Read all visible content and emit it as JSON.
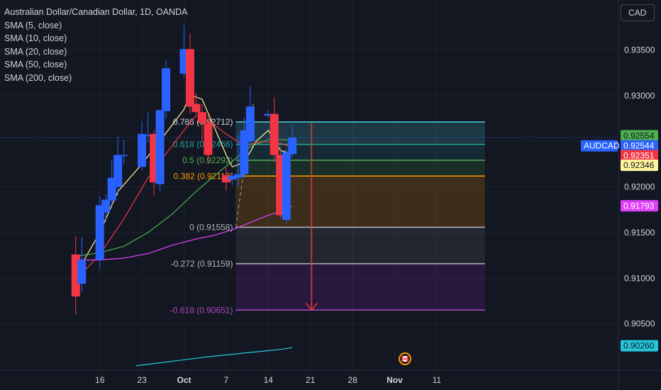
{
  "header": {
    "symbol_title": "Australian Dollar/Canadian Dollar, 1D, OANDA",
    "indicators": [
      "SMA (5, close)",
      "SMA (10, close)",
      "SMA (20, close)",
      "SMA (50, close)",
      "SMA (200, close)"
    ],
    "currency_button": "CAD"
  },
  "colors": {
    "background": "#131722",
    "bull": "#2962ff",
    "bear": "#f23645",
    "sma5": "#fff59d",
    "sma10": "#f23645",
    "sma20": "#4caf50",
    "sma50": "#e040fb",
    "sma200": "#26c6da",
    "fib_0786": "#4dd0e1",
    "fib_0618": "#26a69a",
    "fib_05": "#4caf50",
    "fib_0382": "#ff9800",
    "fib_0": "#b2b5be",
    "fib_m0272": "#b2b5be",
    "fib_m0618": "#ab47bc",
    "arrow": "#e53935"
  },
  "chart_data": {
    "type": "candlestick",
    "yaxis_ticks": [
      "0.93500",
      "0.93000",
      "0.92500",
      "0.92000",
      "0.91500",
      "0.91000",
      "0.90500"
    ],
    "ylim": [
      0.9002,
      0.9378
    ],
    "xaxis_ticks": [
      {
        "label": "16",
        "day": 16
      },
      {
        "label": "23",
        "day": 23
      },
      {
        "label": "Oct",
        "day": 30
      },
      {
        "label": "7",
        "day": 37
      },
      {
        "label": "14",
        "day": 44
      },
      {
        "label": "21",
        "day": 51
      },
      {
        "label": "28",
        "day": 58
      },
      {
        "label": "Nov",
        "day": 65
      },
      {
        "label": "11",
        "day": 72
      }
    ],
    "candles": [
      {
        "day": 12,
        "open": 0.9126,
        "high": 0.9146,
        "low": 0.906,
        "close": 0.908
      },
      {
        "day": 13,
        "open": 0.9094,
        "high": 0.9145,
        "low": 0.9085,
        "close": 0.912
      },
      {
        "day": 16,
        "open": 0.912,
        "high": 0.919,
        "low": 0.911,
        "close": 0.918
      },
      {
        "day": 17,
        "open": 0.9172,
        "high": 0.9192,
        "low": 0.9162,
        "close": 0.9186
      },
      {
        "day": 18,
        "open": 0.9185,
        "high": 0.923,
        "low": 0.918,
        "close": 0.921
      },
      {
        "day": 19,
        "open": 0.92,
        "high": 0.9255,
        "low": 0.919,
        "close": 0.9235
      },
      {
        "day": 20,
        "open": 0.9234,
        "high": 0.9252,
        "low": 0.9225,
        "close": 0.9235
      },
      {
        "day": 23,
        "open": 0.9222,
        "high": 0.9272,
        "low": 0.9218,
        "close": 0.9258
      },
      {
        "day": 24,
        "open": 0.9256,
        "high": 0.9282,
        "low": 0.9249,
        "close": 0.9257
      },
      {
        "day": 25,
        "open": 0.9258,
        "high": 0.9262,
        "low": 0.919,
        "close": 0.9205
      },
      {
        "day": 26,
        "open": 0.9203,
        "high": 0.9285,
        "low": 0.9195,
        "close": 0.9284
      },
      {
        "day": 27,
        "open": 0.9283,
        "high": 0.934,
        "low": 0.9275,
        "close": 0.933
      },
      {
        "day": 30,
        "open": 0.9324,
        "high": 0.9377,
        "low": 0.932,
        "close": 0.9351
      },
      {
        "day": 31,
        "open": 0.9351,
        "high": 0.9368,
        "low": 0.928,
        "close": 0.9288
      },
      {
        "day": 32,
        "open": 0.9291,
        "high": 0.9303,
        "low": 0.9279,
        "close": 0.9282
      },
      {
        "day": 33,
        "open": 0.9282,
        "high": 0.9291,
        "low": 0.925,
        "close": 0.927
      },
      {
        "day": 34,
        "open": 0.927,
        "high": 0.928,
        "low": 0.9225,
        "close": 0.9235
      },
      {
        "day": 37,
        "open": 0.9213,
        "high": 0.9221,
        "low": 0.9196,
        "close": 0.9205
      },
      {
        "day": 38,
        "open": 0.9208,
        "high": 0.9216,
        "low": 0.9202,
        "close": 0.9212
      },
      {
        "day": 39,
        "open": 0.921,
        "high": 0.9257,
        "low": 0.9201,
        "close": 0.9214
      },
      {
        "day": 40,
        "open": 0.9214,
        "high": 0.9276,
        "low": 0.921,
        "close": 0.9262
      },
      {
        "day": 41,
        "open": 0.925,
        "high": 0.931,
        "low": 0.9245,
        "close": 0.9288
      },
      {
        "day": 44,
        "open": 0.9278,
        "high": 0.9284,
        "low": 0.9276,
        "close": 0.928
      },
      {
        "day": 45,
        "open": 0.928,
        "high": 0.9298,
        "low": 0.9227,
        "close": 0.9235
      },
      {
        "day": 46,
        "open": 0.9235,
        "high": 0.9244,
        "low": 0.9166,
        "close": 0.9169
      },
      {
        "day": 47,
        "open": 0.9164,
        "high": 0.9242,
        "low": 0.916,
        "close": 0.9238
      },
      {
        "day": 48,
        "open": 0.9236,
        "high": 0.9268,
        "low": 0.9232,
        "close": 0.9254
      }
    ],
    "sma_lines": [
      {
        "name": "SMA (5, close)",
        "color_key": "sma5",
        "points": [
          [
            12,
            0.9104
          ],
          [
            16,
            0.915
          ],
          [
            19,
            0.9195
          ],
          [
            23,
            0.9225
          ],
          [
            27,
            0.9259
          ],
          [
            30,
            0.9285
          ],
          [
            31,
            0.9301
          ],
          [
            33,
            0.9296
          ],
          [
            35,
            0.9266
          ],
          [
            37,
            0.9235
          ],
          [
            38,
            0.9222
          ],
          [
            40,
            0.9227
          ],
          [
            42,
            0.925
          ],
          [
            44,
            0.9262
          ],
          [
            46,
            0.924
          ],
          [
            48,
            0.9236
          ]
        ]
      },
      {
        "name": "SMA (10, close)",
        "color_key": "sma10",
        "points": [
          [
            12,
            0.9098
          ],
          [
            16,
            0.9126
          ],
          [
            20,
            0.9165
          ],
          [
            24,
            0.921
          ],
          [
            28,
            0.9245
          ],
          [
            30,
            0.9262
          ],
          [
            32,
            0.9278
          ],
          [
            34,
            0.9273
          ],
          [
            37,
            0.9258
          ],
          [
            40,
            0.9245
          ],
          [
            43,
            0.925
          ],
          [
            46,
            0.9248
          ],
          [
            48,
            0.9243
          ]
        ]
      },
      {
        "name": "SMA (20, close)",
        "color_key": "sma20",
        "points": [
          [
            12,
            0.9124
          ],
          [
            16,
            0.9128
          ],
          [
            20,
            0.9135
          ],
          [
            24,
            0.915
          ],
          [
            28,
            0.917
          ],
          [
            32,
            0.9195
          ],
          [
            35,
            0.9212
          ],
          [
            38,
            0.9228
          ],
          [
            41,
            0.9244
          ],
          [
            44,
            0.9252
          ],
          [
            46,
            0.9252
          ],
          [
            48,
            0.9251
          ]
        ]
      },
      {
        "name": "SMA (50, close)",
        "color_key": "sma50",
        "points": [
          [
            12,
            0.912
          ],
          [
            16,
            0.912
          ],
          [
            20,
            0.9122
          ],
          [
            24,
            0.9127
          ],
          [
            28,
            0.9136
          ],
          [
            32,
            0.9143
          ],
          [
            35,
            0.9147
          ],
          [
            38,
            0.9153
          ],
          [
            41,
            0.9161
          ],
          [
            44,
            0.9169
          ],
          [
            46,
            0.9173
          ],
          [
            48,
            0.9179
          ]
        ]
      },
      {
        "name": "SMA (200, close)",
        "color_key": "sma200",
        "points": [
          [
            22,
            0.9004
          ],
          [
            28,
            0.9009
          ],
          [
            34,
            0.9014
          ],
          [
            40,
            0.9018
          ],
          [
            46,
            0.9022
          ],
          [
            48,
            0.9024
          ]
        ]
      }
    ],
    "fibonacci": {
      "x_start_day": 38.6,
      "x_extension_day": 80,
      "levels": [
        {
          "ratio": "0.786",
          "price": "0.92712",
          "value": 0.92712,
          "color_key": "fib_0786",
          "label": "0.786 (0.92712)",
          "label_color": "#d1d4dc"
        },
        {
          "ratio": "0.618",
          "price": "0.92466",
          "value": 0.92466,
          "color_key": "fib_0618",
          "label": "0.618 (0.92466)",
          "label_color": "#26a69a"
        },
        {
          "ratio": "0.5",
          "price": "0.92292",
          "value": 0.92292,
          "color_key": "fib_05",
          "label": "0.5 (0.92292)",
          "label_color": "#4caf50"
        },
        {
          "ratio": "0.382",
          "price": "0.92119",
          "value": 0.92119,
          "color_key": "fib_0382",
          "label": "0.382 (0.92119)",
          "label_color": "#ff9800"
        },
        {
          "ratio": "0",
          "price": "0.91558",
          "value": 0.91558,
          "color_key": "fib_0",
          "label": "0 (0.91558)",
          "label_color": "#b2b5be"
        },
        {
          "ratio": "-0.272",
          "price": "0.91159",
          "value": 0.91159,
          "color_key": "fib_m0272",
          "label": "-0.272 (0.91159)",
          "label_color": "#b2b5be"
        },
        {
          "ratio": "-0.618",
          "price": "0.90651",
          "value": 0.90651,
          "color_key": "fib_m0618",
          "label": "-0.618 (0.90651)",
          "label_color": "#ab47bc"
        }
      ]
    },
    "arrow": {
      "day": 51.2,
      "from": 0.927,
      "to": 0.9065
    },
    "price_tags": [
      {
        "text": "0.92554",
        "value": 0.92554,
        "bg": "#4caf50",
        "fg": "#131722"
      },
      {
        "text": "0.92544",
        "value": 0.92544,
        "bg": "#2962ff",
        "fg": "#ffffff",
        "symbol": "AUDCAD"
      },
      {
        "text": "0.92351",
        "value": 0.92351,
        "bg": "#f23645",
        "fg": "#ffffff"
      },
      {
        "text": "0.92346",
        "value": 0.92346,
        "bg": "#fff59d",
        "fg": "#131722"
      },
      {
        "text": "0.91793",
        "value": 0.91793,
        "bg": "#e040fb",
        "fg": "#ffffff"
      },
      {
        "text": "0.90260",
        "value": 0.9026,
        "bg": "#26c6da",
        "fg": "#131722"
      }
    ],
    "last_price": 0.92544
  }
}
